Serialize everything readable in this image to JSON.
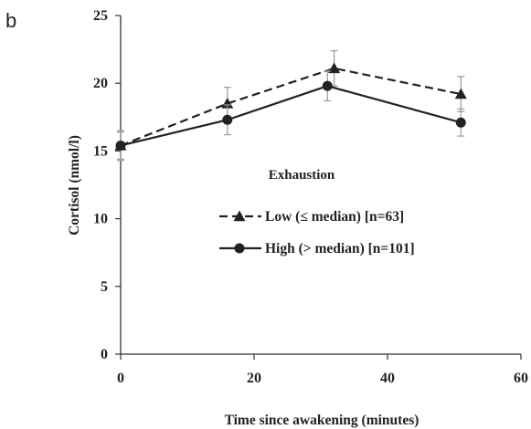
{
  "panel_label": "b",
  "chart_data": {
    "type": "line",
    "xlabel": "Time since awakening (minutes)",
    "ylabel": "Cortisol (nmol/l)",
    "xlim": [
      0,
      60
    ],
    "ylim": [
      0,
      25
    ],
    "x_ticks": [
      0,
      20,
      40,
      60
    ],
    "y_ticks": [
      0,
      5,
      10,
      15,
      20,
      25
    ],
    "grid": false,
    "legend_title": "Exhaustion",
    "legend_position": "center",
    "series": [
      {
        "name": "Low (≤ median) [n=63]",
        "marker": "triangle",
        "line_style": "dashed",
        "color": "#222222",
        "x": [
          0,
          16,
          32,
          51
        ],
        "y": [
          15.4,
          18.5,
          21.1,
          19.2
        ],
        "error": [
          1.0,
          1.2,
          1.3,
          1.3
        ]
      },
      {
        "name": "High (> median) [n=101]",
        "marker": "circle",
        "line_style": "solid",
        "color": "#222222",
        "x": [
          0,
          16,
          31,
          51
        ],
        "y": [
          15.4,
          17.3,
          19.8,
          17.1
        ],
        "error": [
          1.1,
          1.1,
          1.1,
          1.0
        ]
      }
    ]
  }
}
